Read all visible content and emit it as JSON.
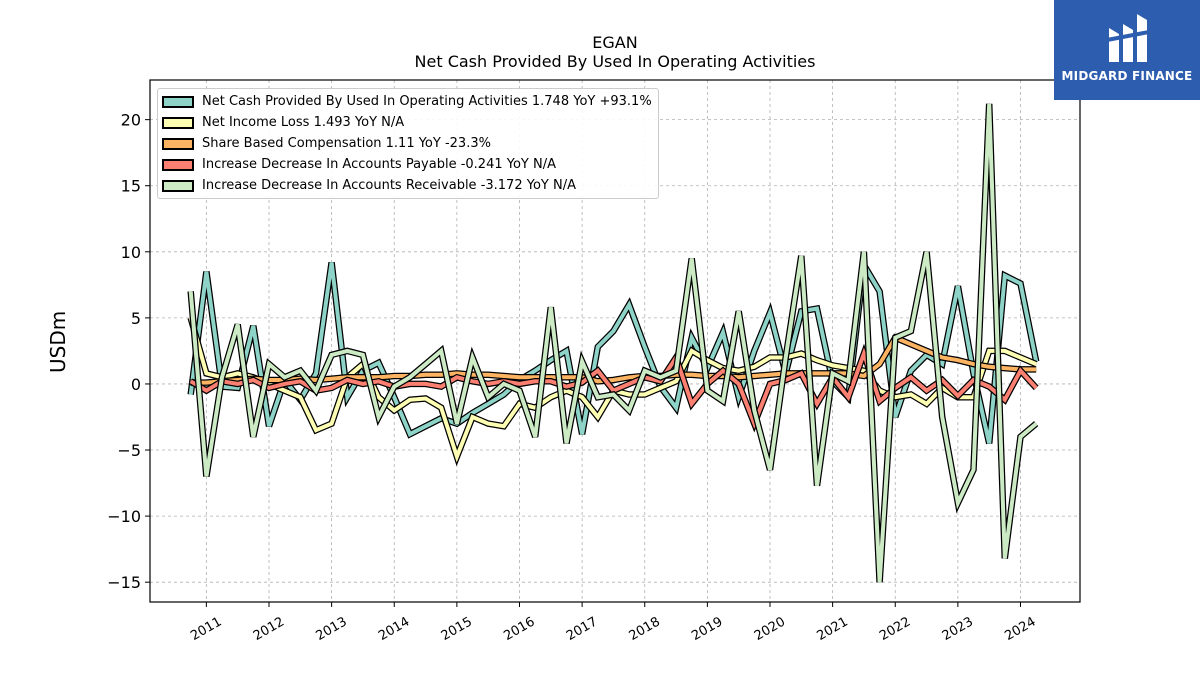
{
  "brand": {
    "name": "MIDGARD FINANCE",
    "bg_color": "#2d5dae"
  },
  "chart_data": {
    "type": "line",
    "title": "EGAN",
    "subtitle": "Net Cash Provided By Used In Operating Activities",
    "ylabel": "USDm",
    "xlabel": "",
    "ylim": [
      -16.5,
      23.0
    ],
    "xlim": [
      2010.1,
      2024.95
    ],
    "yticks": [
      -15,
      -10,
      -5,
      0,
      5,
      10,
      15,
      20
    ],
    "xticks": [
      "2011",
      "2012",
      "2013",
      "2014",
      "2015",
      "2016",
      "2017",
      "2018",
      "2019",
      "2020",
      "2021",
      "2022",
      "2023",
      "2024"
    ],
    "grid": true,
    "legend_position": "top-left",
    "x": [
      2010.75,
      2011.0,
      2011.25,
      2011.5,
      2011.75,
      2012.0,
      2012.25,
      2012.5,
      2012.75,
      2013.0,
      2013.25,
      2013.5,
      2013.75,
      2014.0,
      2014.25,
      2014.5,
      2014.75,
      2015.0,
      2015.25,
      2015.5,
      2015.75,
      2016.0,
      2016.25,
      2016.5,
      2016.75,
      2017.0,
      2017.25,
      2017.5,
      2017.75,
      2018.0,
      2018.25,
      2018.5,
      2018.75,
      2019.0,
      2019.25,
      2019.5,
      2019.75,
      2020.0,
      2020.25,
      2020.5,
      2020.75,
      2021.0,
      2021.25,
      2021.5,
      2021.75,
      2022.0,
      2022.25,
      2022.5,
      2022.75,
      2023.0,
      2023.25,
      2023.5,
      2023.75,
      2024.0,
      2024.25
    ],
    "series": [
      {
        "name": "Net Cash Provided By Used In Operating Activities",
        "legend": "Net Cash Provided By Used In Operating Activities  1.748 YoY +93.1%",
        "color": "#8dd3c7",
        "values": [
          -0.8,
          8.5,
          -0.2,
          -0.3,
          4.4,
          -3.2,
          0.3,
          -1.2,
          0.8,
          9.2,
          -1.0,
          1.0,
          1.6,
          -1.0,
          -3.8,
          -3.2,
          -2.6,
          -3.0,
          -2.2,
          -1.5,
          -0.8,
          0.3,
          1.0,
          1.8,
          2.5,
          -3.8,
          2.8,
          4.0,
          6.0,
          2.8,
          -0.2,
          -1.8,
          3.5,
          1.2,
          3.9,
          -1.0,
          2.5,
          5.4,
          0.8,
          5.5,
          5.7,
          0.2,
          -1.0,
          9.0,
          7.0,
          -2.5,
          1.0,
          2.2,
          1.5,
          7.4,
          0.8,
          -4.5,
          8.2,
          7.6,
          1.7
        ]
      },
      {
        "name": "Net Income Loss",
        "legend": "Net Income Loss  1.493 YoY N/A",
        "color": "#ffffb3",
        "values": [
          5.0,
          0.8,
          0.5,
          0.8,
          0.5,
          0.0,
          -0.5,
          -1.0,
          -3.5,
          -3.0,
          0.5,
          1.5,
          -1.0,
          -2.0,
          -1.2,
          -1.1,
          -1.8,
          -5.5,
          -2.5,
          -3.0,
          -3.2,
          -1.5,
          -1.8,
          -1.0,
          -0.5,
          -1.0,
          -2.5,
          -0.5,
          -0.8,
          -0.8,
          -0.3,
          0.2,
          2.5,
          1.8,
          1.2,
          1.0,
          1.3,
          2.0,
          2.0,
          2.3,
          1.8,
          1.4,
          1.2,
          1.0,
          -0.5,
          -1.0,
          -0.8,
          -1.5,
          -0.3,
          -1.0,
          -1.0,
          2.5,
          2.5,
          2.0,
          1.5
        ]
      },
      {
        "name": "Share Based Compensation",
        "legend": "Share Based Compensation  1.11 YoY -23.3%",
        "color": "#fdb462",
        "values": [
          0.1,
          0.1,
          0.2,
          0.3,
          0.4,
          0.3,
          0.3,
          0.4,
          0.3,
          0.4,
          0.5,
          0.5,
          0.5,
          0.6,
          0.6,
          0.7,
          0.7,
          0.8,
          0.7,
          0.7,
          0.6,
          0.5,
          0.5,
          0.5,
          0.5,
          0.5,
          0.2,
          0.3,
          0.5,
          0.6,
          0.6,
          0.7,
          0.7,
          0.6,
          0.6,
          0.5,
          0.6,
          0.7,
          0.8,
          0.8,
          0.8,
          0.8,
          0.8,
          0.6,
          1.5,
          3.5,
          3.0,
          2.5,
          2.0,
          1.8,
          1.5,
          1.3,
          1.2,
          1.1,
          1.1
        ]
      },
      {
        "name": "Increase Decrease In Accounts Payable",
        "legend": "Increase Decrease In Accounts Payable  -0.241 YoY N/A",
        "color": "#fb8072",
        "values": [
          0.2,
          -0.5,
          0.2,
          0.0,
          0.3,
          -0.3,
          0.0,
          0.2,
          -0.5,
          -0.3,
          0.3,
          0.0,
          0.2,
          -0.2,
          0.0,
          0.0,
          -0.2,
          0.5,
          0.2,
          0.0,
          0.2,
          0.0,
          0.2,
          0.2,
          -0.2,
          0.1,
          1.0,
          -0.5,
          0.0,
          0.5,
          0.2,
          2.0,
          -1.5,
          0.0,
          1.0,
          0.0,
          -3.0,
          0.0,
          0.3,
          0.8,
          -1.5,
          0.5,
          -1.0,
          2.3,
          -1.3,
          -0.3,
          0.5,
          -0.5,
          0.3,
          -0.9,
          0.3,
          -0.2,
          -1.2,
          1.0,
          -0.3
        ]
      },
      {
        "name": "Increase Decrease In Accounts Receivable",
        "legend": "Increase Decrease In Accounts Receivable  -3.172 YoY N/A",
        "color": "#ccebc5",
        "values": [
          7.0,
          -7.0,
          0.5,
          4.5,
          -4.0,
          1.5,
          0.5,
          1.0,
          -0.5,
          2.2,
          2.5,
          2.2,
          -2.5,
          -0.2,
          0.5,
          1.5,
          2.5,
          -3.0,
          2.0,
          -1.0,
          0.0,
          -0.5,
          -4.0,
          5.8,
          -4.5,
          1.7,
          -1.0,
          -0.8,
          -2.0,
          1.0,
          0.5,
          1.0,
          9.5,
          -0.5,
          -1.3,
          5.5,
          -2.0,
          -6.5,
          2.0,
          9.7,
          -7.7,
          0.8,
          0.2,
          10.0,
          -15.0,
          3.5,
          4.0,
          10.0,
          -2.5,
          -9.0,
          -6.5,
          21.2,
          -13.2,
          -4.0,
          -3.0
        ]
      }
    ]
  }
}
